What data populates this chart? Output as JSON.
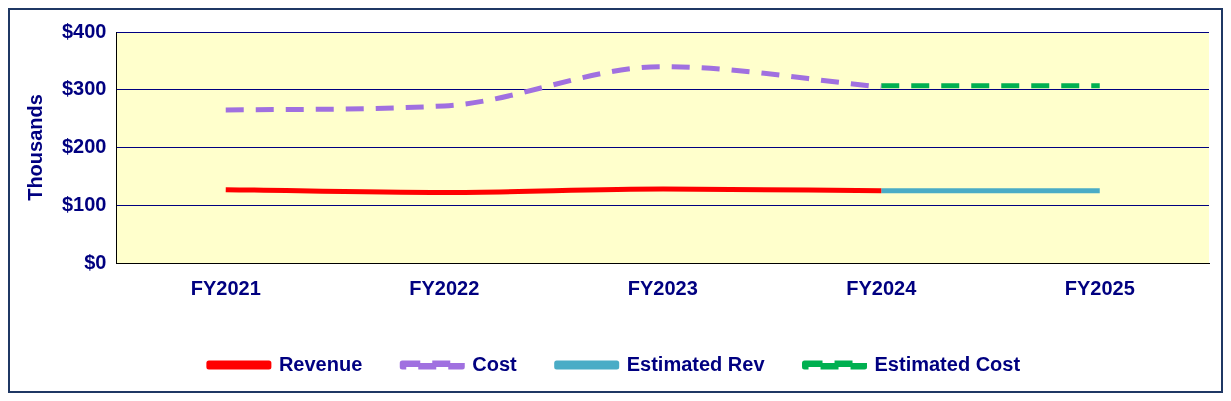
{
  "chart_data": {
    "type": "line",
    "ylabel": "Thousands",
    "categories": [
      "FY2021",
      "FY2022",
      "FY2023",
      "FY2024",
      "FY2025"
    ],
    "series": [
      {
        "name": "Revenue",
        "color": "#ff0000",
        "values": [
          127,
          122,
          128,
          125,
          null
        ],
        "line_style": "solid"
      },
      {
        "name": "Cost",
        "color": "#a070e0",
        "values": [
          265,
          272,
          340,
          305,
          null
        ],
        "line_style": "dashed"
      },
      {
        "name": "Estimated Rev",
        "color": "#4aacc6",
        "values": [
          null,
          null,
          null,
          125,
          125
        ],
        "line_style": "solid"
      },
      {
        "name": "Estimated Cost",
        "color": "#00b050",
        "values": [
          null,
          null,
          null,
          307,
          307
        ],
        "line_style": "dashed"
      }
    ],
    "ylim": [
      0,
      400
    ],
    "yticks": [
      {
        "value": 0,
        "label": "$0"
      },
      {
        "value": 100,
        "label": "$100"
      },
      {
        "value": 200,
        "label": "$200"
      },
      {
        "value": 300,
        "label": "$300"
      },
      {
        "value": 400,
        "label": "$400"
      }
    ],
    "grid": "y",
    "legend": "bottom",
    "marker": "none"
  }
}
